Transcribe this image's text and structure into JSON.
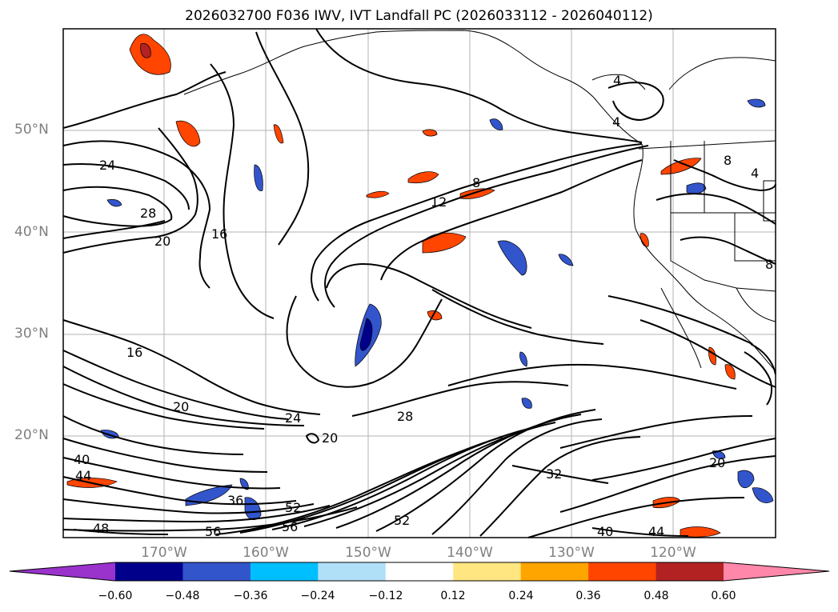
{
  "header": {
    "title": "2026032700 F036 IWV, IVT Landfall PC (2026033112 - 2026040112)"
  },
  "map": {
    "projection": "Plate Carree",
    "lon_range": [
      "180°W",
      "110°W"
    ],
    "lat_range": [
      "10°N",
      "60°N"
    ],
    "lat_labels": [
      "50°N",
      "40°N",
      "30°N",
      "20°N"
    ],
    "lon_labels": [
      "170°W",
      "160°W",
      "150°W",
      "140°W",
      "130°W",
      "120°W"
    ],
    "gridlines": true,
    "coastlines": true,
    "state_borders": true
  },
  "contours": {
    "field": "IWV",
    "color": "#000000",
    "labels": [
      "24",
      "28",
      "20",
      "16",
      "12",
      "8",
      "4",
      "4",
      "8",
      "4",
      "8",
      "16",
      "20",
      "24",
      "20",
      "28",
      "20",
      "32",
      "40",
      "44",
      "40",
      "44",
      "36",
      "52",
      "48",
      "56",
      "56",
      "52"
    ]
  },
  "colorbar": {
    "ticks": [
      "−0.60",
      "−0.48",
      "−0.36",
      "−0.24",
      "−0.12",
      "0.12",
      "0.24",
      "0.36",
      "0.48",
      "0.60"
    ],
    "colors": [
      "#9933cc",
      "#00008b",
      "#3355cc",
      "#00bfff",
      "#b0e0f8",
      "#ffffff",
      "#ffe680",
      "#ffa500",
      "#ff4500",
      "#b22222",
      "#ff88aa"
    ],
    "extend": "both"
  }
}
